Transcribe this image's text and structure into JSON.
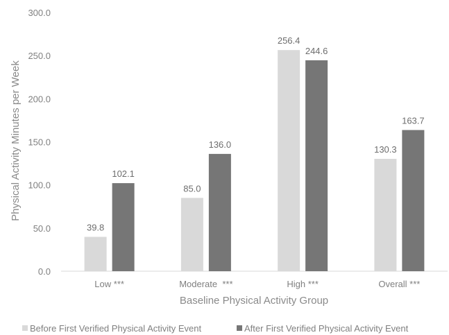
{
  "chart_data": {
    "type": "bar",
    "title": "",
    "xlabel": "Baseline Physical Activity Group",
    "ylabel": "Physical Activity Minutes per Week",
    "categories": [
      "Low ***",
      "Moderate  ***",
      "High ***",
      "Overall ***"
    ],
    "series": [
      {
        "name": "Before First Verified Physical Activity Event",
        "values": [
          39.8,
          85.0,
          256.4,
          130.3
        ],
        "labels": [
          "39.8",
          "85.0",
          "256.4",
          "130.3"
        ],
        "color": "#d9d9d9"
      },
      {
        "name": "After First Verified Physical Activity Event",
        "values": [
          102.1,
          136.0,
          244.6,
          163.7
        ],
        "labels": [
          "102.1",
          "136.0",
          "244.6",
          "163.7"
        ],
        "color": "#767676"
      }
    ],
    "ylim": [
      0,
      300
    ],
    "yticks": [
      "0.0",
      "50.0",
      "100.0",
      "150.0",
      "200.0",
      "250.0",
      "300.0"
    ],
    "grid": false,
    "legend_position": "bottom"
  }
}
